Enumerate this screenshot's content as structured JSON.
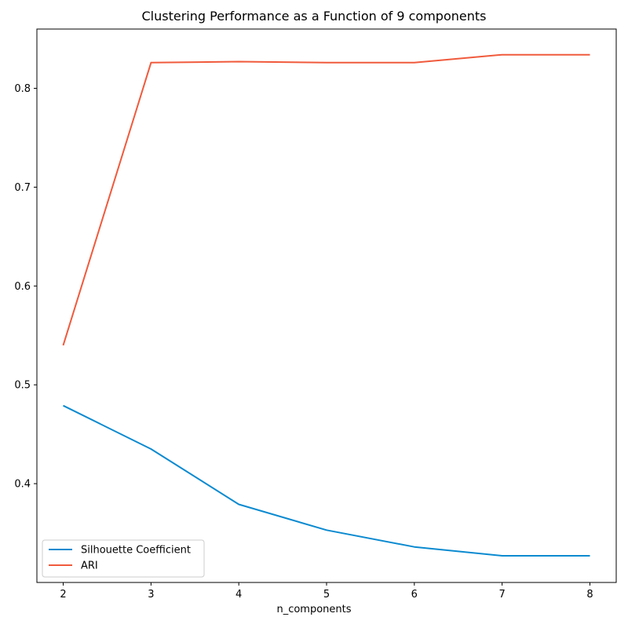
{
  "chart_data": {
    "type": "line",
    "title": "Clustering Performance as a Function of 9 components",
    "xlabel": "n_components",
    "ylabel": "",
    "x": [
      2,
      3,
      4,
      5,
      6,
      7,
      8
    ],
    "xlim": [
      1.7,
      8.3
    ],
    "ylim": [
      0.3,
      0.86
    ],
    "x_ticks": [
      2,
      3,
      4,
      5,
      6,
      7,
      8
    ],
    "y_ticks": [
      0.4,
      0.5,
      0.6,
      0.7,
      0.8
    ],
    "grid": false,
    "legend_position": "lower-left",
    "series": [
      {
        "name": "Silhouette Coefficient",
        "color": "#0a8ad0",
        "values": [
          0.479,
          0.435,
          0.379,
          0.353,
          0.336,
          0.327,
          0.327
        ]
      },
      {
        "name": "ARI",
        "color": "#f05a3c",
        "values": [
          0.54,
          0.826,
          0.827,
          0.826,
          0.826,
          0.834,
          0.834
        ]
      }
    ]
  }
}
